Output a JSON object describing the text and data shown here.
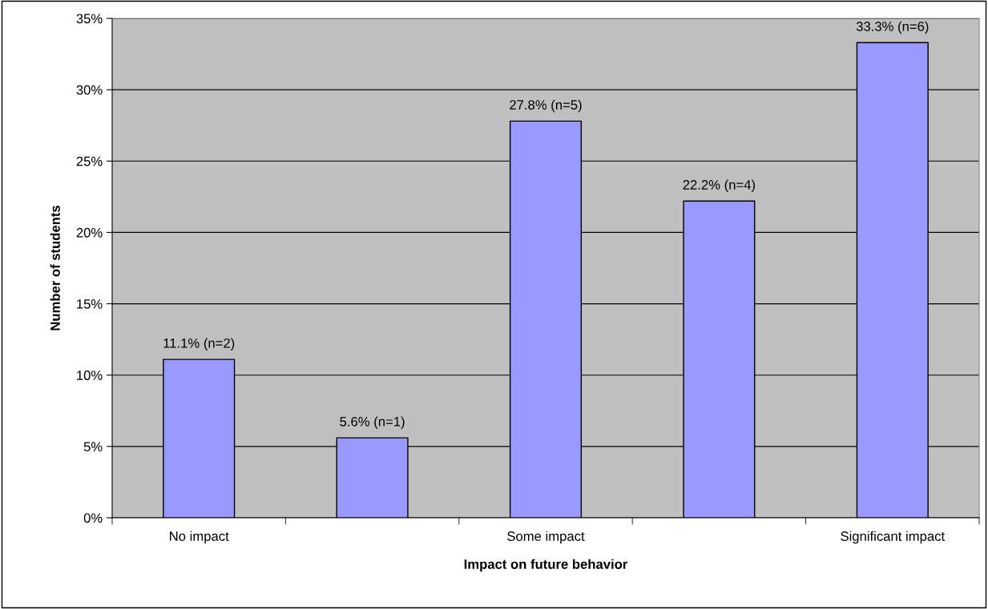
{
  "chart_data": {
    "type": "bar",
    "xlabel": "Impact on future behavior",
    "ylabel": "Number of students",
    "categories": [
      "No impact",
      null,
      "Some impact",
      null,
      "Significant impact"
    ],
    "values": [
      11.1,
      5.6,
      27.8,
      22.2,
      33.3
    ],
    "value_labels": [
      "11.1% (n=2)",
      "5.6% (n=1)",
      "27.8% (n=5)",
      "22.2% (n=4)",
      "33.3% (n=6)"
    ],
    "color": "#9999ff",
    "ylim": [
      0,
      35
    ],
    "yticks": [
      {
        "value": 0,
        "label": "0%"
      },
      {
        "value": 5,
        "label": "5%"
      },
      {
        "value": 10,
        "label": "10%"
      },
      {
        "value": 15,
        "label": "15%"
      },
      {
        "value": 20,
        "label": "20%"
      },
      {
        "value": 25,
        "label": "25%"
      },
      {
        "value": 30,
        "label": "30%"
      },
      {
        "value": 35,
        "label": "35%"
      }
    ],
    "grid": "y",
    "legend": false
  }
}
